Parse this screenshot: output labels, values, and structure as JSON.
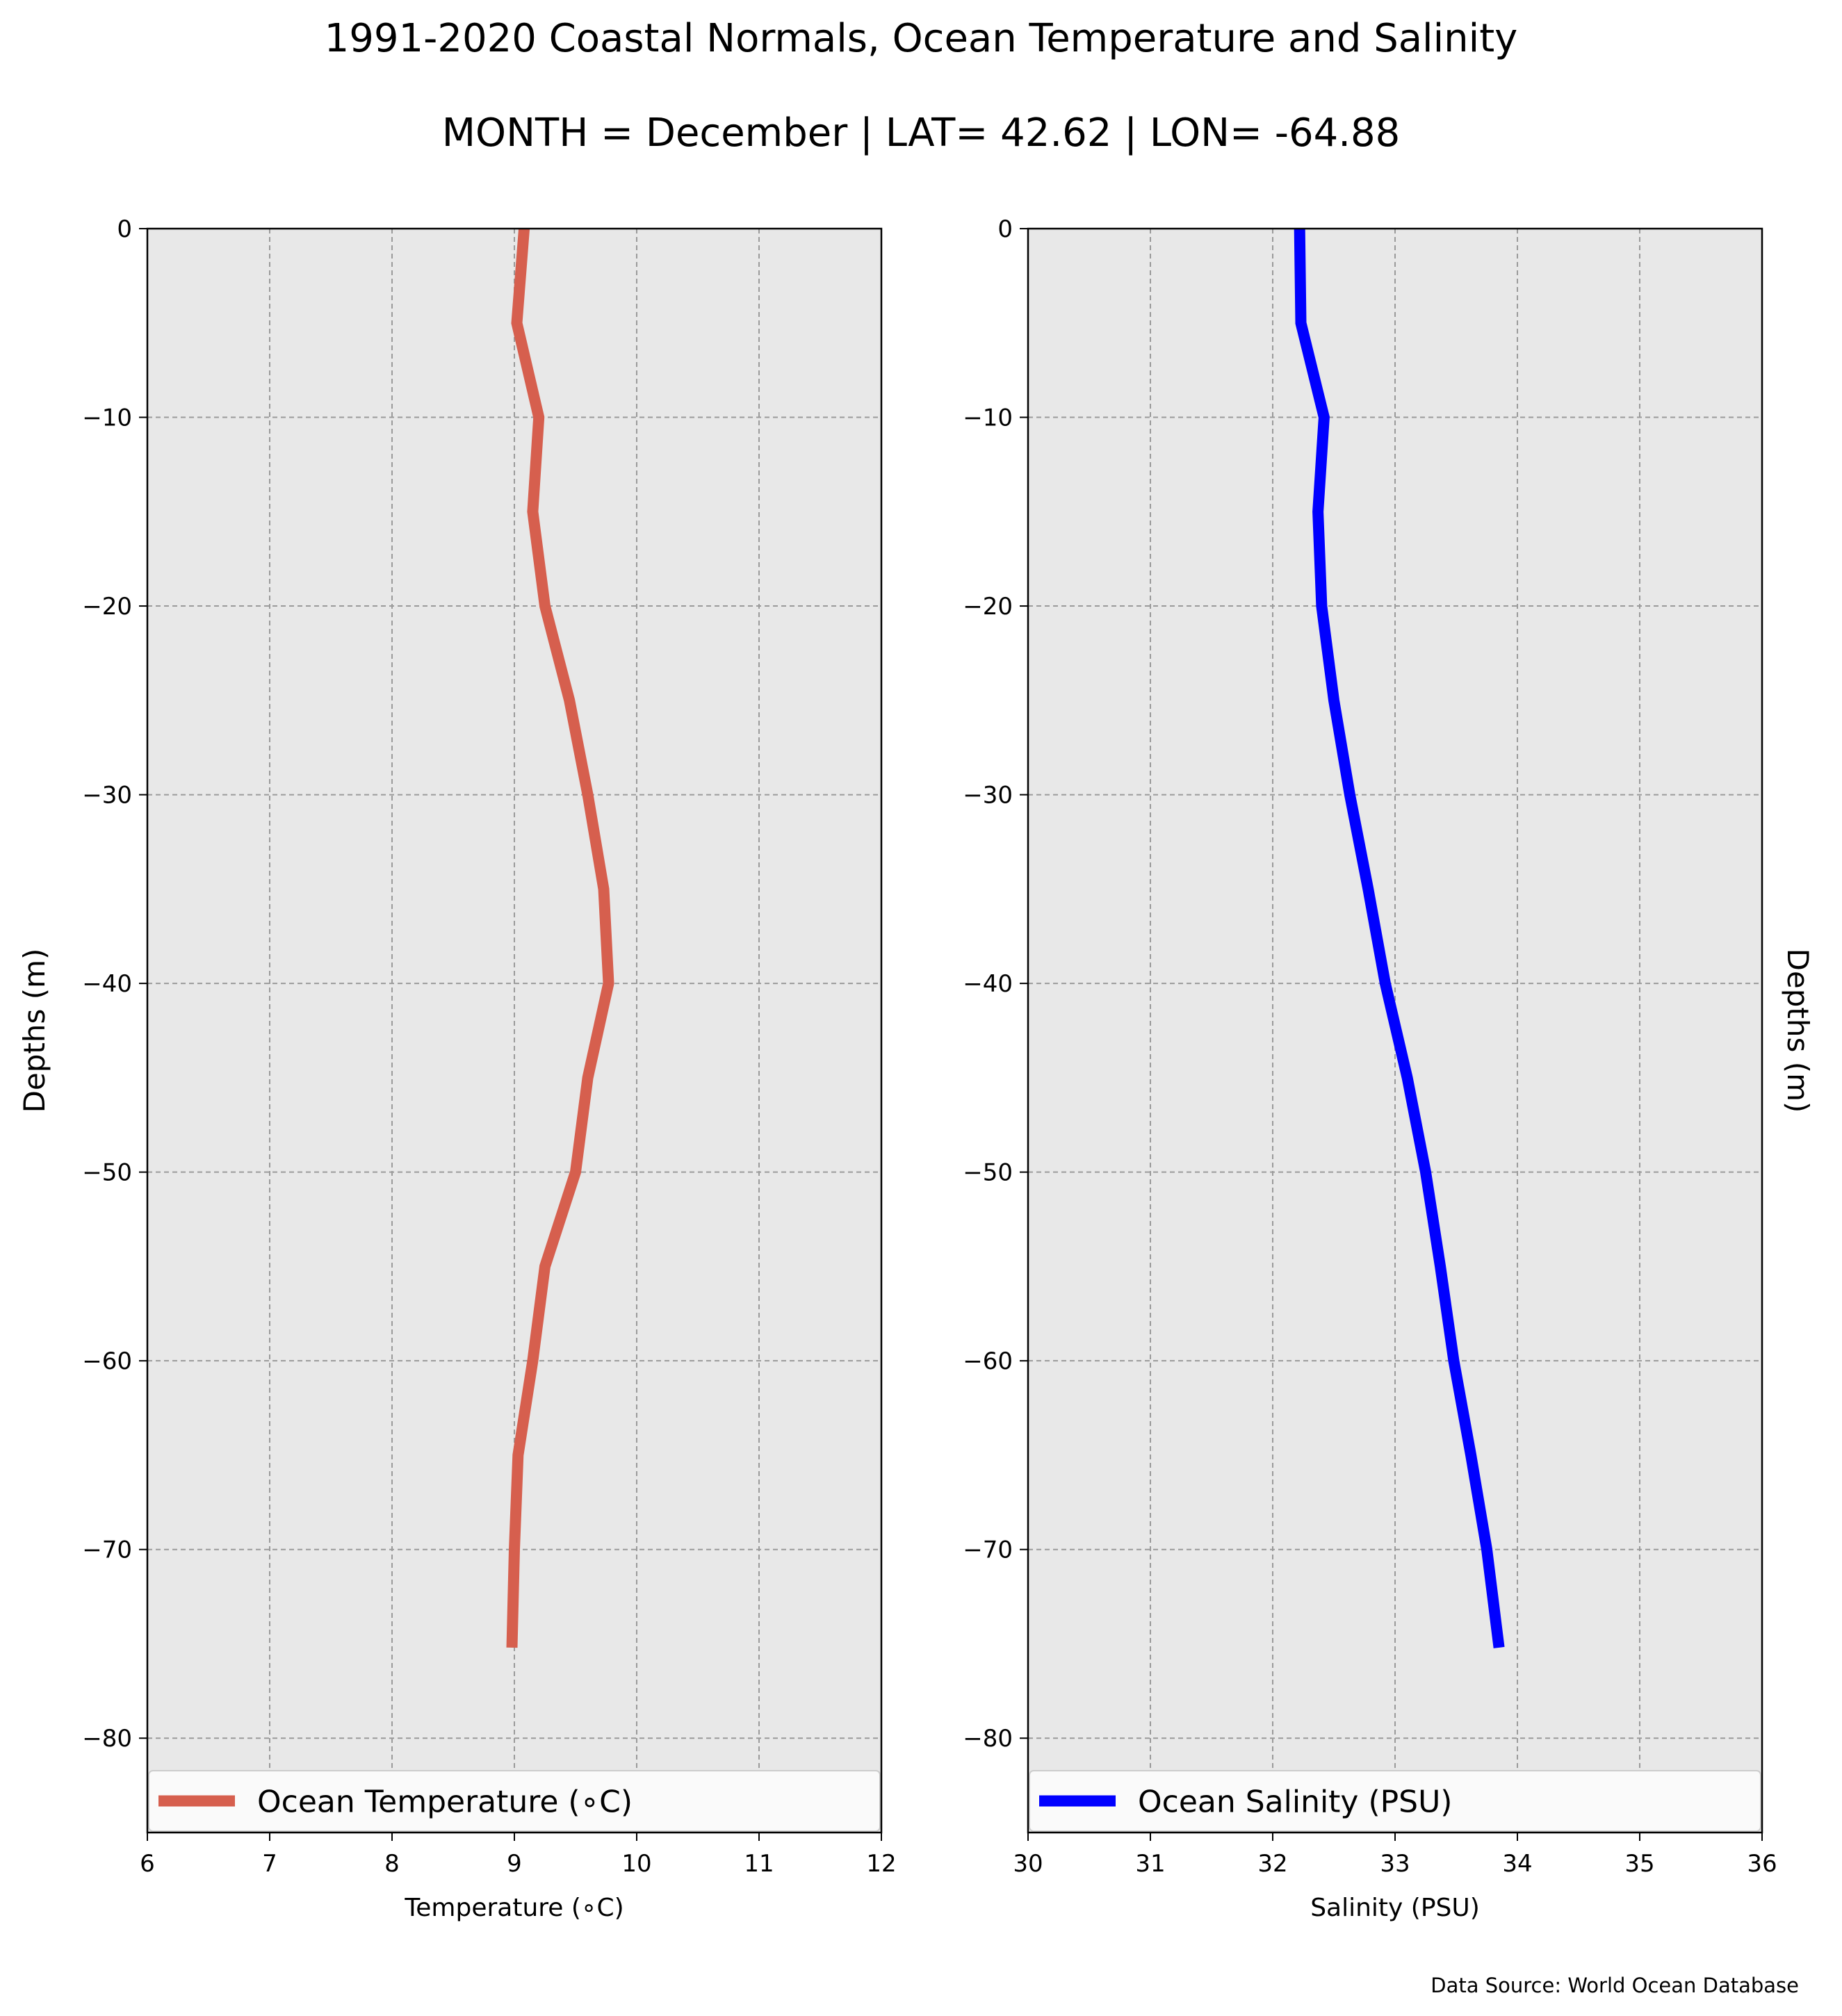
{
  "figure": {
    "title": "1991-2020 Coastal Normals, Ocean Temperature and Salinity",
    "subtitle": "MONTH = December | LAT= 42.62 | LON= -64.88",
    "source": "Data Source: World Ocean Database"
  },
  "colors": {
    "panel_bg": "#e8e8e8",
    "grid": "#9a9a9a",
    "temperature_line": "#d65f4e",
    "salinity_line": "#0000ff"
  },
  "chart_data": [
    {
      "type": "line",
      "xlabel": "Temperature (∘C)",
      "ylabel": "Depths (m)",
      "ylabel_side": "left",
      "xlim": [
        6,
        12
      ],
      "ylim": [
        -85,
        0
      ],
      "xticks": [
        "6",
        "7",
        "8",
        "9",
        "10",
        "11",
        "12"
      ],
      "yticks": [
        "0",
        "−10",
        "−20",
        "−30",
        "−40",
        "−50",
        "−60",
        "−70",
        "−80"
      ],
      "grid": true,
      "legend_position": "bottom",
      "series": [
        {
          "name": "Ocean Temperature (∘C)",
          "color": "#d65f4e",
          "points": [
            {
              "x": 9.08,
              "y": 0
            },
            {
              "x": 9.02,
              "y": -5
            },
            {
              "x": 9.2,
              "y": -10
            },
            {
              "x": 9.15,
              "y": -15
            },
            {
              "x": 9.25,
              "y": -20
            },
            {
              "x": 9.45,
              "y": -25
            },
            {
              "x": 9.6,
              "y": -30
            },
            {
              "x": 9.73,
              "y": -35
            },
            {
              "x": 9.77,
              "y": -40
            },
            {
              "x": 9.6,
              "y": -45
            },
            {
              "x": 9.5,
              "y": -50
            },
            {
              "x": 9.25,
              "y": -55
            },
            {
              "x": 9.15,
              "y": -60
            },
            {
              "x": 9.03,
              "y": -65
            },
            {
              "x": 9.0,
              "y": -70
            },
            {
              "x": 8.98,
              "y": -75.2
            }
          ]
        }
      ]
    },
    {
      "type": "line",
      "xlabel": "Salinity (PSU)",
      "ylabel": "Depths (m)",
      "ylabel_side": "right",
      "xlim": [
        30,
        36
      ],
      "ylim": [
        -85,
        0
      ],
      "xticks": [
        "30",
        "31",
        "32",
        "33",
        "34",
        "35",
        "36"
      ],
      "yticks": [
        "0",
        "−10",
        "−20",
        "−30",
        "−40",
        "−50",
        "−60",
        "−70",
        "−80"
      ],
      "grid": true,
      "legend_position": "bottom",
      "series": [
        {
          "name": "Ocean Salinity (PSU)",
          "color": "#0000ff",
          "points": [
            {
              "x": 32.22,
              "y": 0
            },
            {
              "x": 32.23,
              "y": -5
            },
            {
              "x": 32.42,
              "y": -10
            },
            {
              "x": 32.37,
              "y": -15
            },
            {
              "x": 32.4,
              "y": -20
            },
            {
              "x": 32.5,
              "y": -25
            },
            {
              "x": 32.63,
              "y": -30
            },
            {
              "x": 32.78,
              "y": -35
            },
            {
              "x": 32.92,
              "y": -40
            },
            {
              "x": 33.1,
              "y": -45
            },
            {
              "x": 33.25,
              "y": -50
            },
            {
              "x": 33.37,
              "y": -55
            },
            {
              "x": 33.48,
              "y": -60
            },
            {
              "x": 33.62,
              "y": -65
            },
            {
              "x": 33.75,
              "y": -70
            },
            {
              "x": 33.85,
              "y": -75.2
            }
          ]
        }
      ]
    }
  ]
}
